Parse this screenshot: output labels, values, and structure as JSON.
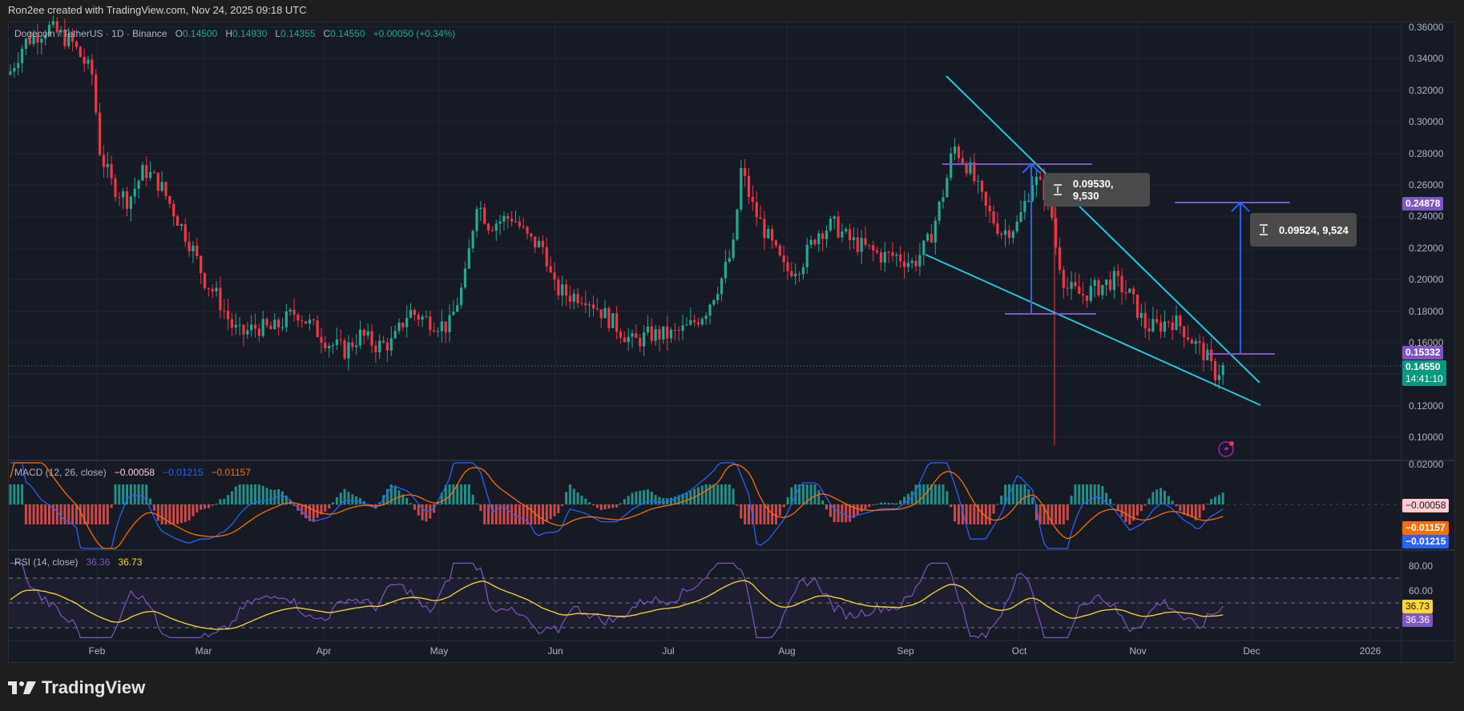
{
  "header": {
    "attribution": "Ron2ee created with TradingView.com, Nov 24, 2025 09:18 UTC"
  },
  "symbol": {
    "title": "Dogecoin / TetherUS · 1D · Binance",
    "open_label": "O",
    "open": "0.14500",
    "high_label": "H",
    "high": "0.14930",
    "low_label": "L",
    "low": "0.14355",
    "close_label": "C",
    "close": "0.14550",
    "change": "+0.00050 (+0.34%)"
  },
  "macd": {
    "label": "MACD (12, 26, close)",
    "hist": "−0.00058",
    "macd": "−0.01215",
    "signal": "−0.01157",
    "axis_top": "0.02000",
    "tags": {
      "hist": "−0.00058",
      "signal": "−0.01157",
      "macd": "−0.01215"
    }
  },
  "rsi": {
    "label": "RSI (14, close)",
    "value": "36.36",
    "ma": "36.73",
    "axis": [
      "80.00",
      "60.00"
    ],
    "tags": {
      "ma": "36.73",
      "rsi": "36.36"
    }
  },
  "price_axis": {
    "ticks": [
      "0.36000",
      "0.34000",
      "0.32000",
      "0.30000",
      "0.28000",
      "0.26000",
      "0.24000",
      "0.22000",
      "0.20000",
      "0.18000",
      "0.16000",
      "0.12000",
      "0.10000"
    ],
    "tags": {
      "target": "0.24878",
      "breakout": "0.15332",
      "last": "0.14550",
      "countdown": "14:41:10"
    }
  },
  "time_axis": {
    "ticks": [
      "Feb",
      "Mar",
      "Apr",
      "May",
      "Jun",
      "Jul",
      "Aug",
      "Sep",
      "Oct",
      "Nov",
      "Dec",
      "2026"
    ]
  },
  "annotations": {
    "measure1": "0.09530, 9,530",
    "measure2": "0.09524, 9,524"
  },
  "colors": {
    "up": "#22ab94",
    "down": "#f23645",
    "wedge": "#26c6da",
    "level": "#7e57c2",
    "arrow": "#2962ff",
    "macd_line": "#2962ff",
    "signal_line": "#ff6d00",
    "rsi_line": "#7e57c2",
    "rsi_ma": "#fdd835"
  },
  "footer": {
    "brand": "TradingView"
  },
  "chart_data": {
    "type": "candlestick",
    "title": "Dogecoin / TetherUS · 1D · Binance",
    "x_range": [
      "2025-01",
      "2025-11-24"
    ],
    "ylim": [
      0.09,
      0.36
    ],
    "yticks": [
      0.1,
      0.12,
      0.16,
      0.18,
      0.2,
      0.22,
      0.24,
      0.26,
      0.28,
      0.3,
      0.32,
      0.34,
      0.36
    ],
    "xticks": [
      "Feb",
      "Mar",
      "Apr",
      "May",
      "Jun",
      "Jul",
      "Aug",
      "Sep",
      "Oct",
      "Nov",
      "Dec",
      "2026"
    ],
    "approx_monthly_close": {
      "Jan": 0.33,
      "Feb": 0.24,
      "Mar": 0.17,
      "Apr": 0.16,
      "May": 0.23,
      "Jun": 0.17,
      "Jul": 0.17,
      "Aug": 0.22,
      "Sep": 0.23,
      "Oct": 0.18,
      "Nov": 0.1455
    },
    "last_ohlc": {
      "open": 0.145,
      "high": 0.1493,
      "low": 0.14355,
      "close": 0.1455
    },
    "drawings": {
      "falling_wedge_upper": [
        [
          "2025-09-03",
          0.329
        ],
        [
          "2025-11-28",
          0.133
        ]
      ],
      "falling_wedge_lower": [
        [
          "2025-09-01",
          0.215
        ],
        [
          "2025-11-28",
          0.121
        ]
      ],
      "measure_1": {
        "from": 0.179,
        "to": 0.2743,
        "delta": 0.0953,
        "label": "0.09530, 9,530"
      },
      "measure_2": {
        "from": 0.15332,
        "to": 0.24878,
        "delta": 0.09524,
        "label": "0.09524, 9,524"
      }
    },
    "indicators": {
      "MACD": {
        "params": [
          12,
          26,
          "close"
        ],
        "histogram": -0.00058,
        "macd": -0.01215,
        "signal": -0.01157
      },
      "RSI": {
        "params": [
          14,
          "close"
        ],
        "rsi": 36.36,
        "ma": 36.73,
        "bands": [
          70,
          50,
          30
        ]
      }
    }
  }
}
